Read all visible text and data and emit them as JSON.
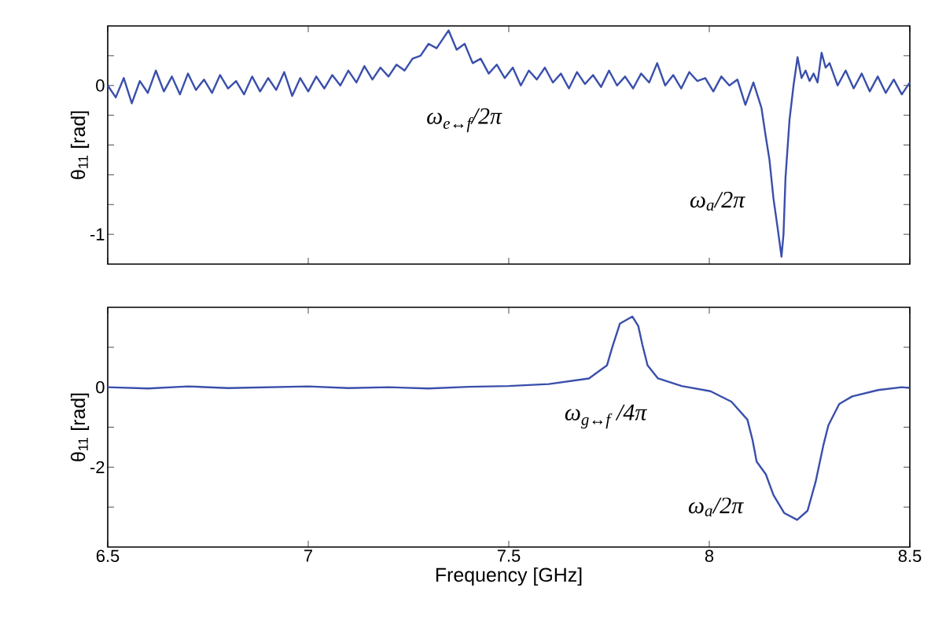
{
  "chart_data": [
    {
      "type": "line",
      "ylabel": "θ$_{11}$ [rad]",
      "tick_labels": "y",
      "xlim": [
        6.5,
        8.5
      ],
      "xticks": [
        6.5,
        7,
        7.5,
        8,
        8.5
      ],
      "ylim": [
        -1.2,
        0.4
      ],
      "yticks": [
        {
          "value": 0.2,
          "label": null
        },
        0,
        {
          "value": -0.2,
          "label": null
        },
        {
          "value": -0.4,
          "label": null
        },
        {
          "value": -0.6,
          "label": null
        },
        {
          "value": -0.8,
          "label": null
        },
        -1
      ],
      "x": [
        6.5,
        6.52,
        6.54,
        6.56,
        6.58,
        6.6,
        6.62,
        6.64,
        6.66,
        6.68,
        6.7,
        6.72,
        6.74,
        6.76,
        6.78,
        6.8,
        6.82,
        6.84,
        6.86,
        6.88,
        6.9,
        6.92,
        6.94,
        6.96,
        6.98,
        7.0,
        7.02,
        7.04,
        7.06,
        7.08,
        7.1,
        7.12,
        7.14,
        7.16,
        7.18,
        7.2,
        7.22,
        7.24,
        7.26,
        7.28,
        7.3,
        7.32,
        7.35,
        7.37,
        7.39,
        7.41,
        7.43,
        7.45,
        7.47,
        7.49,
        7.51,
        7.53,
        7.55,
        7.57,
        7.59,
        7.61,
        7.63,
        7.65,
        7.67,
        7.69,
        7.71,
        7.73,
        7.75,
        7.77,
        7.79,
        7.81,
        7.83,
        7.85,
        7.87,
        7.89,
        7.91,
        7.93,
        7.95,
        7.97,
        7.99,
        8.01,
        8.03,
        8.05,
        8.07,
        8.09,
        8.11,
        8.13,
        8.14,
        8.15,
        8.16,
        8.17,
        8.18,
        8.185,
        8.19,
        8.2,
        8.21,
        8.22,
        8.23,
        8.24,
        8.25,
        8.26,
        8.27,
        8.28,
        8.29,
        8.3,
        8.32,
        8.34,
        8.36,
        8.38,
        8.4,
        8.42,
        8.44,
        8.46,
        8.48,
        8.5
      ],
      "series": [
        {
          "color": "#3a4fab",
          "values": [
            0.0,
            -0.08,
            0.05,
            -0.12,
            0.03,
            -0.05,
            0.1,
            -0.04,
            0.06,
            -0.06,
            0.08,
            -0.03,
            0.04,
            -0.05,
            0.07,
            -0.02,
            0.03,
            -0.06,
            0.06,
            -0.04,
            0.05,
            -0.03,
            0.09,
            -0.07,
            0.05,
            -0.04,
            0.06,
            -0.02,
            0.07,
            0.0,
            0.1,
            0.02,
            0.13,
            0.04,
            0.12,
            0.06,
            0.14,
            0.1,
            0.18,
            0.2,
            0.28,
            0.25,
            0.37,
            0.24,
            0.28,
            0.15,
            0.18,
            0.08,
            0.14,
            0.05,
            0.12,
            0.0,
            0.1,
            0.04,
            0.12,
            0.02,
            0.08,
            -0.02,
            0.09,
            0.01,
            0.07,
            -0.01,
            0.1,
            0.0,
            0.06,
            -0.02,
            0.08,
            0.02,
            0.15,
            0.0,
            0.07,
            -0.02,
            0.09,
            0.03,
            0.05,
            -0.04,
            0.06,
            0.0,
            0.04,
            -0.13,
            0.02,
            -0.15,
            -0.33,
            -0.5,
            -0.76,
            -0.95,
            -1.15,
            -1.0,
            -0.62,
            -0.23,
            0.0,
            0.19,
            0.05,
            0.1,
            0.03,
            0.08,
            0.02,
            0.22,
            0.12,
            0.15,
            0.0,
            0.1,
            -0.02,
            0.08,
            -0.04,
            0.06,
            -0.05,
            0.04,
            -0.06,
            0.02
          ]
        }
      ],
      "annotations": [
        "ω$_{e↔f}$/2π",
        "ω$_{a}$/2π"
      ]
    },
    {
      "type": "line",
      "ylabel": "θ$_{11}$ [rad]",
      "xlabel": "Frequency [GHz]",
      "xlim": [
        6.5,
        8.5
      ],
      "xticks": [
        6.5,
        7,
        7.5,
        8,
        8.5
      ],
      "ylim": [
        -4,
        2
      ],
      "yticks": [
        {
          "value": 1,
          "label": null
        },
        0,
        {
          "value": -1,
          "label": null
        },
        -2,
        {
          "value": -3,
          "label": null
        }
      ],
      "x": [
        6.5,
        6.6,
        6.7,
        6.8,
        6.9,
        7.0,
        7.1,
        7.2,
        7.3,
        7.4,
        7.5,
        7.6,
        7.7,
        7.745,
        7.758,
        7.777,
        7.808,
        7.823,
        7.833,
        7.846,
        7.872,
        7.931,
        8.003,
        8.055,
        8.095,
        8.108,
        8.118,
        8.141,
        8.16,
        8.187,
        8.219,
        8.245,
        8.265,
        8.284,
        8.297,
        8.324,
        8.356,
        8.421,
        8.48,
        8.5
      ],
      "series": [
        {
          "color": "#3a4fab",
          "values": [
            0.0,
            -0.03,
            0.02,
            -0.02,
            0.0,
            0.02,
            -0.02,
            0.0,
            -0.03,
            0.01,
            0.03,
            0.08,
            0.22,
            0.55,
            1.0,
            1.59,
            1.77,
            1.53,
            1.07,
            0.55,
            0.22,
            0.03,
            -0.1,
            -0.36,
            -0.81,
            -1.33,
            -1.86,
            -2.18,
            -2.7,
            -3.15,
            -3.32,
            -3.09,
            -2.37,
            -1.47,
            -0.95,
            -0.42,
            -0.23,
            -0.07,
            0.0,
            -0.02
          ]
        }
      ],
      "annotations": [
        "ω$_{g↔f}$ /4π",
        "ω$_{a}$/2π"
      ]
    }
  ]
}
